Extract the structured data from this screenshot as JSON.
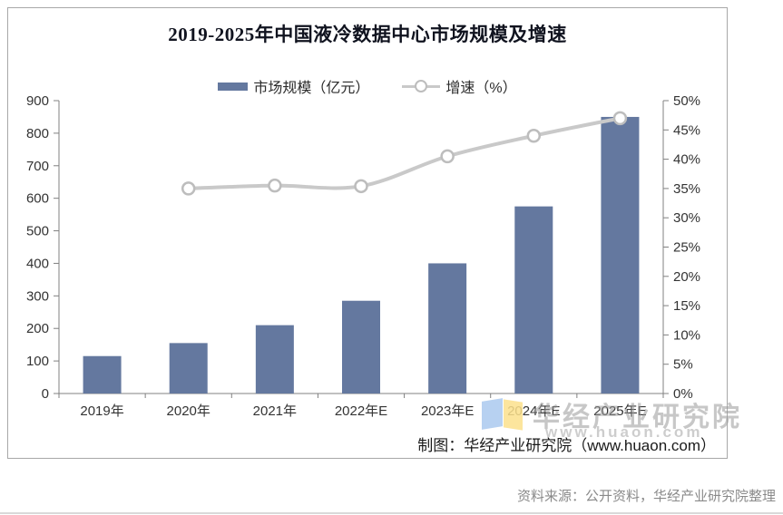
{
  "title": "2019-2025年中国液冷数据中心市场规模及增速",
  "legend": {
    "items": [
      {
        "label": "市场规模（亿元）",
        "type": "bar"
      },
      {
        "label": "增速（%）",
        "type": "line"
      }
    ]
  },
  "chart_data": {
    "type": "bar",
    "subtype": "bar+line combo, dual axis",
    "title": "2019-2025年中国液冷数据中心市场规模及增速",
    "categories": [
      "2019年",
      "2020年",
      "2021年",
      "2022年E",
      "2023年E",
      "2024年E",
      "2025年E"
    ],
    "series": [
      {
        "name": "市场规模（亿元）",
        "type": "bar",
        "axis": "left",
        "values": [
          115,
          155,
          210,
          285,
          400,
          575,
          850
        ]
      },
      {
        "name": "增速（%）",
        "type": "line",
        "axis": "right",
        "values": [
          null,
          35,
          35.5,
          35.4,
          40.5,
          44,
          47
        ]
      }
    ],
    "left_axis": {
      "min": 0,
      "max": 900,
      "step": 100,
      "tick_labels": [
        "0",
        "100",
        "200",
        "300",
        "400",
        "500",
        "600",
        "700",
        "800",
        "900"
      ]
    },
    "right_axis": {
      "min": 0,
      "max": 50,
      "step": 5,
      "tick_labels": [
        "0%",
        "5%",
        "10%",
        "15%",
        "20%",
        "25%",
        "30%",
        "35%",
        "40%",
        "45%",
        "50%"
      ]
    },
    "grid": false,
    "legend_position": "top"
  },
  "colors": {
    "bar": "#64789f",
    "line": "#c9c9c9",
    "marker_fill": "#ffffff",
    "marker_stroke": "#bdbdbd",
    "axis": "#808080",
    "tick_text": "#333333",
    "border": "#a8a8a8",
    "title_text": "#10131f",
    "credit_text": "#1a1a1a",
    "source_text": "#8a8a8a",
    "watermark_text": "#9a9a9a",
    "logo_blue": "#aac9ef",
    "logo_yellow": "#fbe18c"
  },
  "watermark": {
    "name": "华经产业研究院",
    "url": "www.huaon.com"
  },
  "footer": {
    "credit": "制图：华经产业研究院（www.huaon.com）",
    "source": "资料来源：公开资料，华经产业研究院整理"
  }
}
